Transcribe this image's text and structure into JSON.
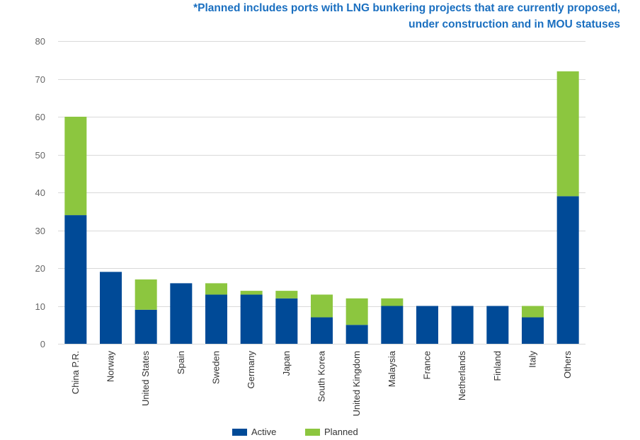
{
  "note": {
    "line1": "*Planned includes ports with LNG bunkering projects that are currently proposed,",
    "line2": "under construction and in MOU statuses"
  },
  "colors": {
    "active": "#004a97",
    "planned": "#8cc63f",
    "grid": "#d9d9d9",
    "axis_text": "#666666"
  },
  "chart_data": {
    "type": "bar",
    "stacked": true,
    "title": "",
    "xlabel": "",
    "ylabel": "",
    "ylim": [
      0,
      80
    ],
    "yticks": [
      0,
      10,
      20,
      30,
      40,
      50,
      60,
      70,
      80
    ],
    "grid": true,
    "legend_position": "bottom-center",
    "categories": [
      "China P.R.",
      "Norway",
      "United States",
      "Spain",
      "Sweden",
      "Germany",
      "Japan",
      "South Korea",
      "United Kingdom",
      "Malaysia",
      "France",
      "Netherlands",
      "Finland",
      "Italy",
      "Others"
    ],
    "series": [
      {
        "name": "Active",
        "color": "#004a97",
        "values": [
          34,
          19,
          9,
          16,
          13,
          13,
          12,
          7,
          5,
          10,
          10,
          10,
          10,
          7,
          39
        ]
      },
      {
        "name": "Planned",
        "color": "#8cc63f",
        "values": [
          26,
          0,
          8,
          0,
          3,
          1,
          2,
          6,
          7,
          2,
          0,
          0,
          0,
          3,
          33
        ]
      }
    ]
  }
}
